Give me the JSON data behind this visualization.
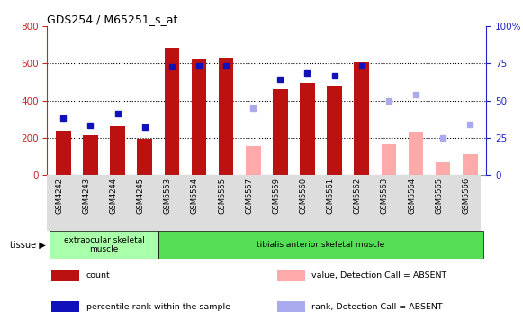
{
  "title": "GDS254 / M65251_s_at",
  "samples": [
    "GSM4242",
    "GSM4243",
    "GSM4244",
    "GSM4245",
    "GSM5553",
    "GSM5554",
    "GSM5555",
    "GSM5557",
    "GSM5559",
    "GSM5560",
    "GSM5561",
    "GSM5562",
    "GSM5563",
    "GSM5564",
    "GSM5565",
    "GSM5566"
  ],
  "count_values": [
    240,
    215,
    260,
    195,
    685,
    625,
    630,
    null,
    460,
    495,
    480,
    605,
    null,
    null,
    null,
    null
  ],
  "count_absent": [
    null,
    null,
    null,
    null,
    null,
    null,
    null,
    155,
    null,
    null,
    null,
    null,
    165,
    235,
    70,
    110
  ],
  "rank_values": [
    305,
    265,
    330,
    258,
    585,
    590,
    590,
    null,
    515,
    550,
    535,
    590,
    null,
    null,
    null,
    null
  ],
  "rank_absent": [
    null,
    null,
    null,
    null,
    null,
    null,
    null,
    360,
    null,
    null,
    null,
    null,
    400,
    430,
    200,
    270
  ],
  "tissue_groups": [
    {
      "label": "extraocular skeletal\nmuscle",
      "start": 0,
      "end": 4,
      "color": "#aaffaa"
    },
    {
      "label": "tibialis anterior skeletal muscle",
      "start": 4,
      "end": 16,
      "color": "#55dd55"
    }
  ],
  "ylim_left": [
    0,
    800
  ],
  "ylim_right": [
    0,
    100
  ],
  "yticks_left": [
    0,
    200,
    400,
    600,
    800
  ],
  "yticks_right": [
    0,
    25,
    50,
    75,
    100
  ],
  "bar_color": "#bb1111",
  "bar_absent_color": "#ffaaaa",
  "rank_color": "#1111bb",
  "rank_absent_color": "#aaaaee",
  "bg_color": "#ffffff",
  "grid_color": "#000000",
  "axis_label_left_color": "#cc2222",
  "axis_label_right_color": "#2222cc"
}
